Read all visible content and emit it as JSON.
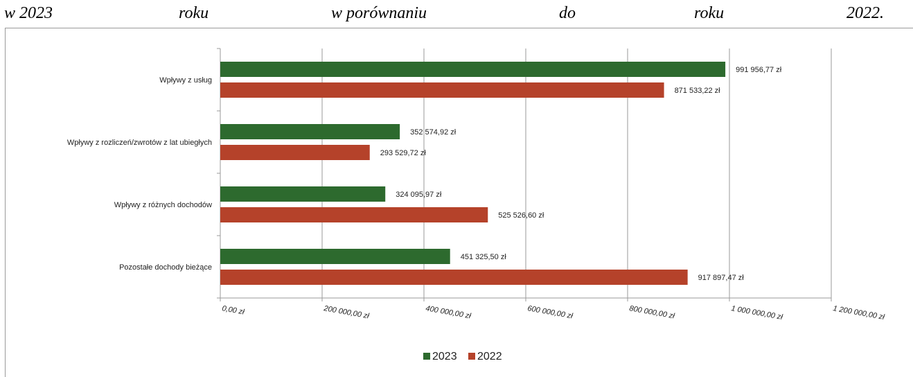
{
  "heading": {
    "words": [
      "w 2023",
      "roku",
      "w porównaniu",
      "do",
      "roku",
      "2022."
    ]
  },
  "chart_data": {
    "type": "bar",
    "orientation": "horizontal",
    "title": "",
    "xlabel": "",
    "ylabel": "",
    "categories": [
      "Wpływy z usług",
      "Wpływy z rozliczeń/zwrotów z lat ubiegłych",
      "Wpływy z różnych dochodów",
      "Pozostałe dochody bieżące"
    ],
    "series": [
      {
        "name": "2023",
        "color": "#2d6a2e",
        "values": [
          991956.77,
          352574.92,
          324095.97,
          451325.5
        ],
        "labels": [
          "991 956,77 zł",
          "352 574,92 zł",
          "324 095,97 zł",
          "451 325,50 zł"
        ]
      },
      {
        "name": "2022",
        "color": "#b5422a",
        "values": [
          871533.22,
          293529.72,
          525526.6,
          917897.47
        ],
        "labels": [
          "871 533,22 zł",
          "293 529,72 zł",
          "525 526,60 zł",
          "917 897,47 zł"
        ]
      }
    ],
    "xlim": [
      0,
      1200000
    ],
    "x_ticks": [
      0,
      200000,
      400000,
      600000,
      800000,
      1000000,
      1200000
    ],
    "x_tick_labels": [
      "0,00 zł",
      "200 000,00 zł",
      "400 000,00 zł",
      "600 000,00 zł",
      "800 000,00 zł",
      "1 000 000,00 zł",
      "1 200 000,00 zł"
    ],
    "grid": true,
    "legend_position": "bottom-center"
  }
}
